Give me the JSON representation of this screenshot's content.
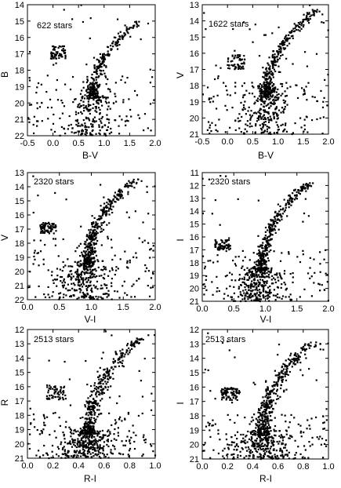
{
  "chart_data": [
    {
      "type": "scatter",
      "annotation": "622 stars",
      "xlabel": "B-V",
      "ylabel": "B",
      "xlim": [
        -0.5,
        2.0
      ],
      "ylim": [
        22,
        14
      ],
      "xticks": [
        "-0.5",
        "0.0",
        "0.5",
        "1.0",
        "1.5",
        "2.0"
      ],
      "yticks": [
        "14",
        "15",
        "16",
        "17",
        "18",
        "19",
        "20",
        "21",
        "22"
      ],
      "yinverted": true,
      "grid": false,
      "components": {
        "rgb": {
          "ms": [
            15.0,
            19.7
          ],
          "cs": [
            0.78,
            1.7
          ],
          "width": 0.06
        },
        "ms": {
          "ms": [
            18.9,
            22.0
          ],
          "cs": [
            0.78,
            0.72
          ],
          "width": 0.14
        },
        "hb": {
          "x": [
            -0.05,
            0.25
          ],
          "y": [
            16.5,
            17.3
          ]
        },
        "field": {
          "x": [
            -0.5,
            2.0
          ],
          "y": [
            18.3,
            21.9
          ]
        }
      }
    },
    {
      "type": "scatter",
      "annotation": "1622 stars",
      "xlabel": "B-V",
      "ylabel": "V",
      "xlim": [
        -0.5,
        2.0
      ],
      "ylim": [
        21,
        13
      ],
      "xticks": [
        "-0.5",
        "0.0",
        "0.5",
        "1.0",
        "1.5",
        "2.0"
      ],
      "yticks": [
        "13",
        "14",
        "15",
        "16",
        "17",
        "18",
        "19",
        "20",
        "21"
      ],
      "yinverted": true,
      "grid": false,
      "components": {
        "rgb": {
          "ms": [
            13.3,
            18.7
          ],
          "cs": [
            0.78,
            1.75
          ],
          "width": 0.06
        },
        "ms": {
          "ms": [
            18.0,
            21.0
          ],
          "cs": [
            0.78,
            0.72
          ],
          "width": 0.14
        },
        "hb": {
          "x": [
            0.0,
            0.35
          ],
          "y": [
            16.1,
            17.0
          ]
        },
        "field": {
          "x": [
            -0.5,
            2.0
          ],
          "y": [
            17.8,
            21.0
          ]
        }
      }
    },
    {
      "type": "scatter",
      "annotation": "2320 stars",
      "xlabel": "V-I",
      "ylabel": "V",
      "xlim": [
        0.0,
        2.0
      ],
      "ylim": [
        22,
        13
      ],
      "xticks": [
        "0.0",
        "0.5",
        "1.0",
        "1.5",
        "2.0"
      ],
      "yticks": [
        "13",
        "14",
        "15",
        "16",
        "17",
        "18",
        "19",
        "20",
        "21",
        "22"
      ],
      "yinverted": true,
      "grid": false,
      "components": {
        "rgb": {
          "ms": [
            13.4,
            19.5
          ],
          "cs": [
            0.95,
            1.7
          ],
          "width": 0.05
        },
        "ms": {
          "ms": [
            19.2,
            22.0
          ],
          "cs": [
            0.95,
            0.85
          ],
          "width": 0.12
        },
        "hb": {
          "x": [
            0.2,
            0.45
          ],
          "y": [
            16.5,
            17.3
          ]
        },
        "field": {
          "x": [
            0.0,
            2.0
          ],
          "y": [
            17.5,
            21.9
          ]
        }
      }
    },
    {
      "type": "scatter",
      "annotation": "2320 stars",
      "xlabel": "V-I",
      "ylabel": "I",
      "xlim": [
        0.0,
        2.0
      ],
      "ylim": [
        21,
        11
      ],
      "xticks": [
        "0.0",
        "0.5",
        "1.0",
        "1.5",
        "2.0"
      ],
      "yticks": [
        "11",
        "12",
        "13",
        "14",
        "15",
        "16",
        "17",
        "18",
        "19",
        "20",
        "21"
      ],
      "yinverted": true,
      "grid": false,
      "components": {
        "rgb": {
          "ms": [
            11.8,
            18.6
          ],
          "cs": [
            0.95,
            1.7
          ],
          "width": 0.05
        },
        "ms": {
          "ms": [
            18.3,
            21.0
          ],
          "cs": [
            0.95,
            0.85
          ],
          "width": 0.12
        },
        "hb": {
          "x": [
            0.2,
            0.45
          ],
          "y": [
            16.2,
            17.0
          ]
        },
        "field": {
          "x": [
            0.0,
            2.0
          ],
          "y": [
            17.0,
            21.0
          ]
        }
      }
    },
    {
      "type": "scatter",
      "annotation": "2513 stars",
      "xlabel": "R-I",
      "ylabel": "R",
      "xlim": [
        0.0,
        1.0
      ],
      "ylim": [
        21,
        12
      ],
      "xticks": [
        "0.0",
        "0.2",
        "0.4",
        "0.6",
        "0.8",
        "1.0"
      ],
      "yticks": [
        "12",
        "13",
        "14",
        "15",
        "16",
        "17",
        "18",
        "19",
        "20",
        "21"
      ],
      "yinverted": true,
      "grid": false,
      "components": {
        "rgb": {
          "ms": [
            12.6,
            19.3
          ],
          "cs": [
            0.48,
            0.88
          ],
          "width": 0.03
        },
        "ms": {
          "ms": [
            19.0,
            21.0
          ],
          "cs": [
            0.48,
            0.45
          ],
          "width": 0.07
        },
        "hb": {
          "x": [
            0.15,
            0.3
          ],
          "y": [
            15.9,
            16.9
          ]
        },
        "field": {
          "x": [
            0.0,
            1.0
          ],
          "y": [
            17.8,
            21.0
          ]
        }
      }
    },
    {
      "type": "scatter",
      "annotation": "2513 stars",
      "xlabel": "R-I",
      "ylabel": "I",
      "xlim": [
        0.0,
        1.0
      ],
      "ylim": [
        21,
        12
      ],
      "xticks": [
        "0.0",
        "0.2",
        "0.4",
        "0.6",
        "0.8",
        "1.0"
      ],
      "yticks": [
        "12",
        "13",
        "14",
        "15",
        "16",
        "17",
        "18",
        "19",
        "20",
        "21"
      ],
      "yinverted": true,
      "grid": false,
      "components": {
        "rgb": {
          "ms": [
            12.8,
            19.3
          ],
          "cs": [
            0.48,
            0.88
          ],
          "width": 0.03
        },
        "ms": {
          "ms": [
            19.0,
            21.0
          ],
          "cs": [
            0.48,
            0.45
          ],
          "width": 0.07
        },
        "hb": {
          "x": [
            0.15,
            0.3
          ],
          "y": [
            16.0,
            16.9
          ]
        },
        "field": {
          "x": [
            0.0,
            1.0
          ],
          "y": [
            17.8,
            21.0
          ]
        }
      }
    }
  ]
}
